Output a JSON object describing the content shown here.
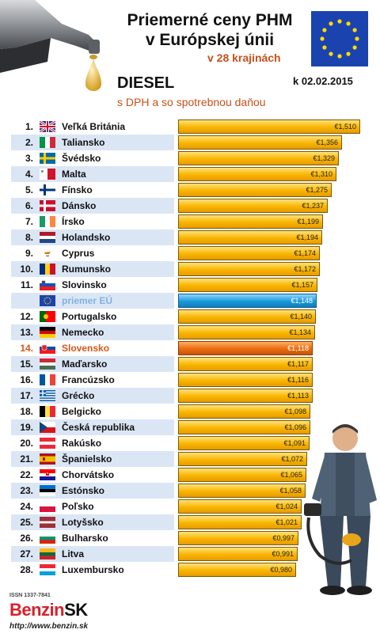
{
  "header": {
    "title_line1": "Priemerné ceny PHM",
    "title_line2": "v Európskej únii",
    "subtitle": "v 28 krajinách",
    "fuel": "DIESEL",
    "fuel_note": "s DPH a so spotrebnou daňou",
    "date": "k 02.02.2015"
  },
  "footer": {
    "issn": "ISSN 1337-7841",
    "logo_main": "Benzin",
    "logo_suffix": "SK",
    "url": "http://www.benzin.sk"
  },
  "colors": {
    "bar": "#f9b500",
    "eu_bar": "#1a9ad8",
    "home_bar": "#ea6b10",
    "home_text": "#d8561b",
    "stripe": "#dbe6f5"
  },
  "chart_data": {
    "type": "bar",
    "orientation": "horizontal",
    "currency": "€",
    "xlim": [
      0,
      1.6
    ],
    "rows": [
      {
        "rank": "1.",
        "country": "Veľká Británia",
        "value": 1.51,
        "label": "€1,510",
        "flag": "uk-flag-icon"
      },
      {
        "rank": "2.",
        "country": "Taliansko",
        "value": 1.356,
        "label": "€1,356",
        "flag": "italy-flag-icon"
      },
      {
        "rank": "3.",
        "country": "Švédsko",
        "value": 1.329,
        "label": "€1,329",
        "flag": "sweden-flag-icon"
      },
      {
        "rank": "4.",
        "country": "Malta",
        "value": 1.31,
        "label": "€1,310",
        "flag": "malta-flag-icon"
      },
      {
        "rank": "5.",
        "country": "Fínsko",
        "value": 1.275,
        "label": "€1,275",
        "flag": "finland-flag-icon"
      },
      {
        "rank": "6.",
        "country": "Dánsko",
        "value": 1.237,
        "label": "€1,237",
        "flag": "denmark-flag-icon"
      },
      {
        "rank": "7.",
        "country": "Írsko",
        "value": 1.199,
        "label": "€1,199",
        "flag": "ireland-flag-icon"
      },
      {
        "rank": "8.",
        "country": "Holandsko",
        "value": 1.194,
        "label": "€1,194",
        "flag": "netherlands-flag-icon"
      },
      {
        "rank": "9.",
        "country": "Cyprus",
        "value": 1.174,
        "label": "€1,174",
        "flag": "cyprus-flag-icon"
      },
      {
        "rank": "10.",
        "country": "Rumunsko",
        "value": 1.172,
        "label": "€1,172",
        "flag": "romania-flag-icon"
      },
      {
        "rank": "11.",
        "country": "Slovinsko",
        "value": 1.157,
        "label": "€1,157",
        "flag": "slovenia-flag-icon"
      },
      {
        "rank": "",
        "country": "priemer EÚ",
        "value": 1.148,
        "label": "€1,148",
        "flag": "eu-flag-icon",
        "kind": "eu"
      },
      {
        "rank": "12.",
        "country": "Portugalsko",
        "value": 1.14,
        "label": "€1,140",
        "flag": "portugal-flag-icon"
      },
      {
        "rank": "13.",
        "country": "Nemecko",
        "value": 1.134,
        "label": "€1,134",
        "flag": "germany-flag-icon"
      },
      {
        "rank": "14.",
        "country": "Slovensko",
        "value": 1.118,
        "label": "€1,118",
        "flag": "slovakia-flag-icon",
        "kind": "home"
      },
      {
        "rank": "15.",
        "country": "Maďarsko",
        "value": 1.117,
        "label": "€1,117",
        "flag": "hungary-flag-icon"
      },
      {
        "rank": "16.",
        "country": "Francúzsko",
        "value": 1.116,
        "label": "€1,116",
        "flag": "france-flag-icon"
      },
      {
        "rank": "17.",
        "country": "Grécko",
        "value": 1.113,
        "label": "€1,113",
        "flag": "greece-flag-icon"
      },
      {
        "rank": "18.",
        "country": "Belgicko",
        "value": 1.098,
        "label": "€1,098",
        "flag": "belgium-flag-icon"
      },
      {
        "rank": "19.",
        "country": "Česká republika",
        "value": 1.096,
        "label": "€1,096",
        "flag": "czech-flag-icon"
      },
      {
        "rank": "20.",
        "country": "Rakúsko",
        "value": 1.091,
        "label": "€1,091",
        "flag": "austria-flag-icon"
      },
      {
        "rank": "21.",
        "country": "Španielsko",
        "value": 1.072,
        "label": "€1,072",
        "flag": "spain-flag-icon"
      },
      {
        "rank": "22.",
        "country": "Chorvátsko",
        "value": 1.065,
        "label": "€1,065",
        "flag": "croatia-flag-icon"
      },
      {
        "rank": "23.",
        "country": "Estónsko",
        "value": 1.058,
        "label": "€1,058",
        "flag": "estonia-flag-icon"
      },
      {
        "rank": "24.",
        "country": "Poľsko",
        "value": 1.024,
        "label": "€1,024",
        "flag": "poland-flag-icon"
      },
      {
        "rank": "25.",
        "country": "Lotyšsko",
        "value": 1.021,
        "label": "€1,021",
        "flag": "latvia-flag-icon"
      },
      {
        "rank": "26.",
        "country": "Bulharsko",
        "value": 0.997,
        "label": "€0,997",
        "flag": "bulgaria-flag-icon"
      },
      {
        "rank": "27.",
        "country": "Litva",
        "value": 0.991,
        "label": "€0,991",
        "flag": "lithuania-flag-icon"
      },
      {
        "rank": "28.",
        "country": "Luxembursko",
        "value": 0.98,
        "label": "€0,980",
        "flag": "luxembourg-flag-icon"
      }
    ]
  }
}
